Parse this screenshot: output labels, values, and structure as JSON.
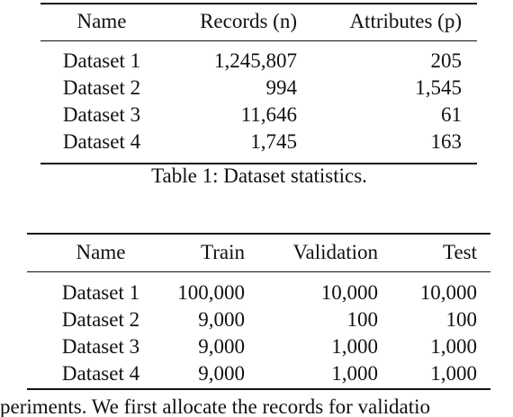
{
  "table1": {
    "header": [
      "Name",
      "Records (n)",
      "Attributes (p)"
    ],
    "rows": [
      [
        "Dataset 1",
        "1,245,807",
        "205"
      ],
      [
        "Dataset 2",
        "994",
        "1,545"
      ],
      [
        "Dataset 3",
        "11,646",
        "61"
      ],
      [
        "Dataset 4",
        "1,745",
        "163"
      ]
    ],
    "caption": "Table 1: Dataset statistics."
  },
  "table2": {
    "header": [
      "Name",
      "Train",
      "Validation",
      "Test"
    ],
    "rows": [
      [
        "Dataset 1",
        "100,000",
        "10,000",
        "10,000"
      ],
      [
        "Dataset 2",
        "9,000",
        "100",
        "100"
      ],
      [
        "Dataset 3",
        "9,000",
        "1,000",
        "1,000"
      ],
      [
        "Dataset 4",
        "9,000",
        "1,000",
        "1,000"
      ]
    ]
  },
  "body_text": "periments. We first allocate the records for validatio"
}
